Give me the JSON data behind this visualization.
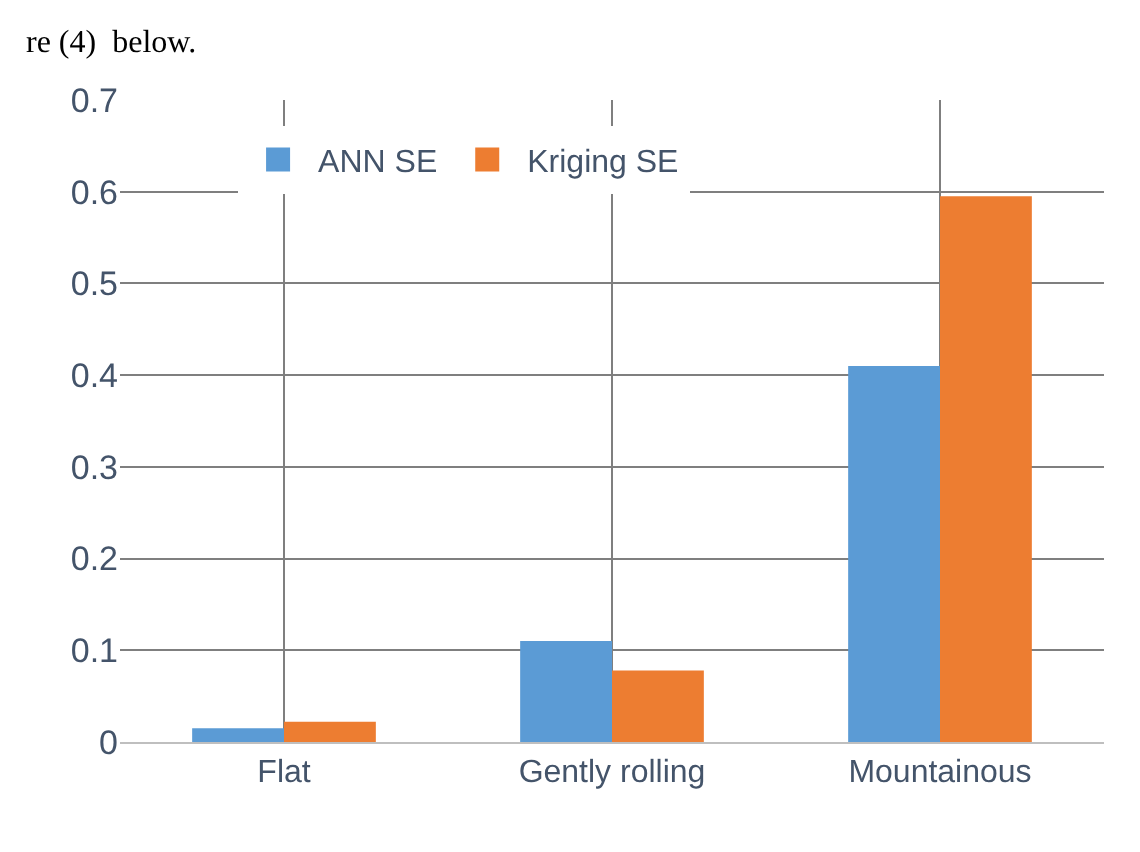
{
  "chart_data": {
    "type": "bar",
    "categories": [
      "Flat",
      "Gently rolling",
      "Mountainous"
    ],
    "series": [
      {
        "name": "ANN SE",
        "color": "#5b9bd5",
        "values": [
          0.015,
          0.11,
          0.41
        ]
      },
      {
        "name": "Kriging SE",
        "color": "#ed7d31",
        "values": [
          0.022,
          0.078,
          0.595
        ]
      }
    ],
    "ylim": [
      0,
      0.7
    ],
    "yticks": [
      {
        "value": 0,
        "label": "0"
      },
      0.1,
      0.2,
      0.3,
      0.4,
      0.5,
      0.6,
      0.7
    ],
    "grid": true,
    "legend": "top left",
    "annotations": [
      "re (4)  below."
    ]
  }
}
